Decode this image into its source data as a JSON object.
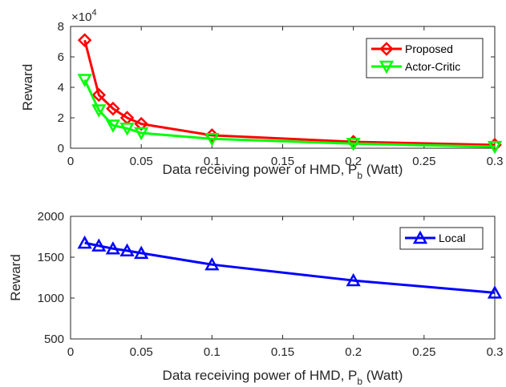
{
  "chart_data": [
    {
      "type": "line",
      "ylabel": "Reward",
      "xlabel": "Data receiving power of HMD, P",
      "xlabel_sub": "b",
      "xlabel_unit": " (Watt)",
      "y_exponent_label": "×10",
      "y_exponent_power": "4",
      "xlim": [
        0,
        0.3
      ],
      "ylim": [
        0,
        8
      ],
      "y_scale_note": "values shown in units of 10^4",
      "x_ticks": [
        0,
        0.05,
        0.1,
        0.15,
        0.2,
        0.25,
        0.3
      ],
      "x_tick_labels": [
        "0",
        "0.05",
        "0.1",
        "0.15",
        "0.2",
        "0.25",
        "0.3"
      ],
      "y_ticks": [
        0,
        2,
        4,
        6,
        8
      ],
      "y_tick_labels": [
        "0",
        "2",
        "4",
        "6",
        "8"
      ],
      "grid": false,
      "legend_position": "top-right",
      "series": [
        {
          "name": "Proposed",
          "color": "#ff0000",
          "marker": "diamond",
          "x": [
            0.01,
            0.02,
            0.03,
            0.04,
            0.05,
            0.1,
            0.2,
            0.3
          ],
          "y": [
            7.1,
            3.5,
            2.6,
            2.0,
            1.6,
            0.85,
            0.42,
            0.22
          ]
        },
        {
          "name": "Actor-Critic",
          "color": "#00ff00",
          "marker": "triangle-down",
          "x": [
            0.01,
            0.02,
            0.03,
            0.04,
            0.05,
            0.1,
            0.2,
            0.3
          ],
          "y": [
            4.5,
            2.5,
            1.5,
            1.3,
            1.0,
            0.62,
            0.3,
            0.1
          ]
        }
      ]
    },
    {
      "type": "line",
      "ylabel": "Reward",
      "xlabel": "Data receiving power of HMD, P",
      "xlabel_sub": "b",
      "xlabel_unit": " (Watt)",
      "xlim": [
        0,
        0.3
      ],
      "ylim": [
        500,
        2000
      ],
      "x_ticks": [
        0,
        0.05,
        0.1,
        0.15,
        0.2,
        0.25,
        0.3
      ],
      "x_tick_labels": [
        "0",
        "0.05",
        "0.1",
        "0.15",
        "0.2",
        "0.25",
        "0.3"
      ],
      "y_ticks": [
        500,
        1000,
        1500,
        2000
      ],
      "y_tick_labels": [
        "500",
        "1000",
        "1500",
        "2000"
      ],
      "grid": false,
      "legend_position": "top-right",
      "series": [
        {
          "name": "Local",
          "color": "#0000ff",
          "marker": "triangle-up",
          "x": [
            0.01,
            0.02,
            0.03,
            0.04,
            0.05,
            0.1,
            0.2,
            0.3
          ],
          "y": [
            1675,
            1640,
            1605,
            1580,
            1550,
            1410,
            1215,
            1065
          ]
        }
      ]
    }
  ]
}
